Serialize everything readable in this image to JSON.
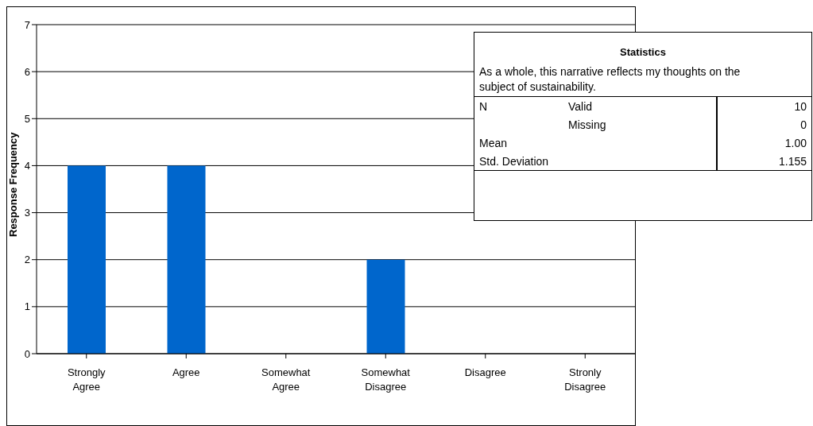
{
  "chart_data": {
    "type": "bar",
    "ylabel": "Response Frequency",
    "categories": [
      "Strongly Agree",
      "Agree",
      "Somewhat Agree",
      "Somewhat Disagree",
      "Disagree",
      "Stronly Disagree"
    ],
    "values": [
      4,
      4,
      0,
      2,
      0,
      0
    ],
    "color": "#0066cc",
    "ylim": [
      0,
      7
    ],
    "yticks": [
      0,
      1,
      2,
      3,
      4,
      5,
      6,
      7
    ],
    "grid": "y",
    "annotations": [
      "Statistics",
      "As a whole, this narrative reflects my thoughts on the subject of sustainability.",
      "N",
      "Valid",
      "10",
      "Missing",
      "0",
      "Mean",
      "1.00",
      "Std. Deviation",
      "1.155"
    ]
  }
}
